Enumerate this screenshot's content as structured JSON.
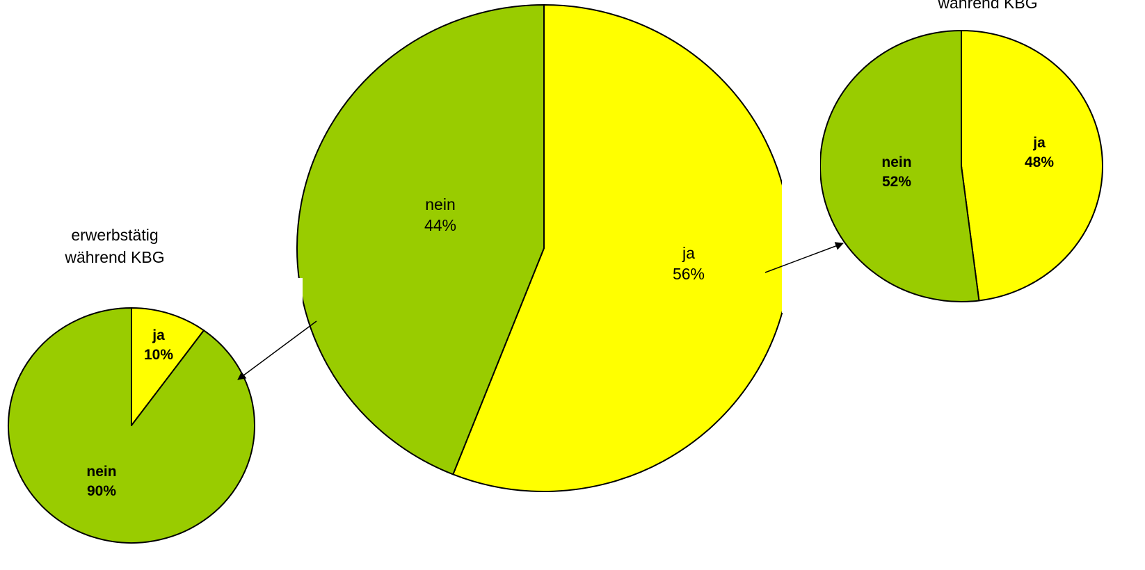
{
  "chart_data": [
    {
      "type": "pie",
      "role": "main",
      "slices": [
        {
          "label": "ja",
          "value": 56,
          "display": "56%",
          "color": "#FFFF00"
        },
        {
          "label": "nein",
          "value": 44,
          "display": "44%",
          "color": "#99CC00"
        }
      ],
      "label_weight": "normal"
    },
    {
      "type": "pie",
      "role": "left-sub",
      "title_lines": [
        "erwerbstätig",
        "während KBG"
      ],
      "slices": [
        {
          "label": "ja",
          "value": 10,
          "display": "10%",
          "color": "#FFFF00"
        },
        {
          "label": "nein",
          "value": 90,
          "display": "90%",
          "color": "#99CC00"
        }
      ],
      "label_weight": "bold"
    },
    {
      "type": "pie",
      "role": "right-sub",
      "title_lines": [
        "während KBG"
      ],
      "slices": [
        {
          "label": "ja",
          "value": 48,
          "display": "48%",
          "color": "#FFFF00"
        },
        {
          "label": "nein",
          "value": 52,
          "display": "52%",
          "color": "#99CC00"
        }
      ],
      "label_weight": "bold"
    }
  ],
  "colors": {
    "ja": "#FFFF00",
    "nein": "#99CC00",
    "outline": "#000000",
    "background": "#FFFFFF"
  }
}
